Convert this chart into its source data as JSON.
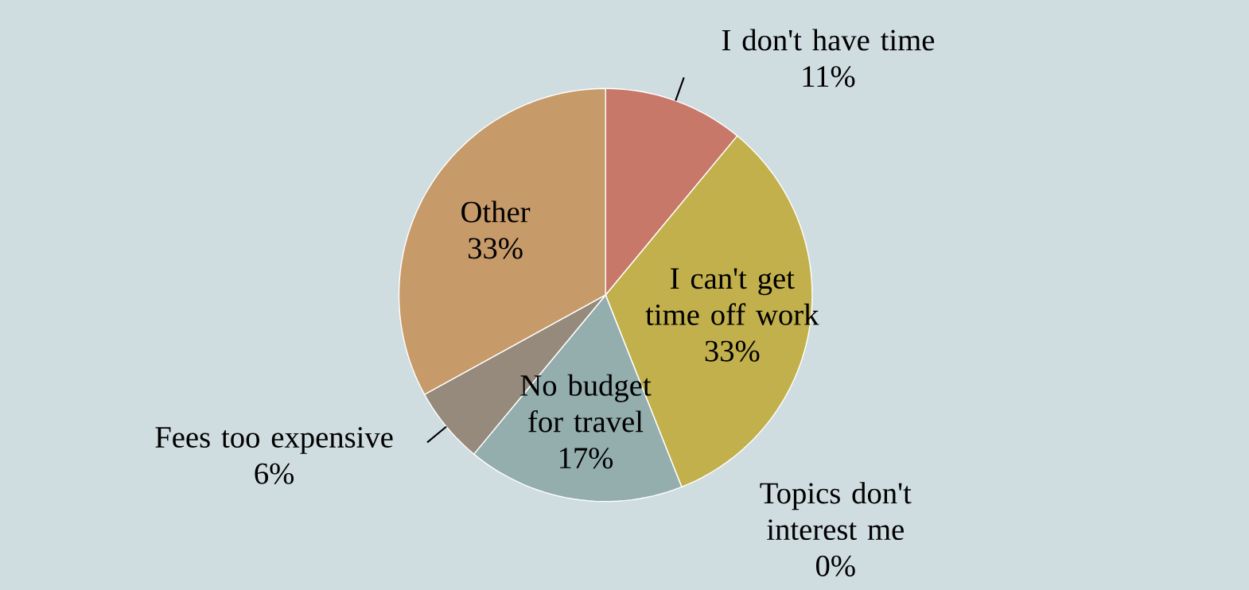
{
  "chart_data": {
    "type": "pie",
    "categories": [
      "I don't have time",
      "I can't get time off work",
      "Topics don't interest me",
      "No budget for travel",
      "Fees too expensive",
      "Other"
    ],
    "values": [
      11,
      33,
      0,
      17,
      6,
      33
    ],
    "value_labels": [
      "11%",
      "33%",
      "0%",
      "17%",
      "6%",
      "33%"
    ],
    "colors": [
      "#c87868",
      "#c2b04c",
      "#8fa8b8",
      "#94adad",
      "#958a7c",
      "#c79a6a"
    ]
  }
}
